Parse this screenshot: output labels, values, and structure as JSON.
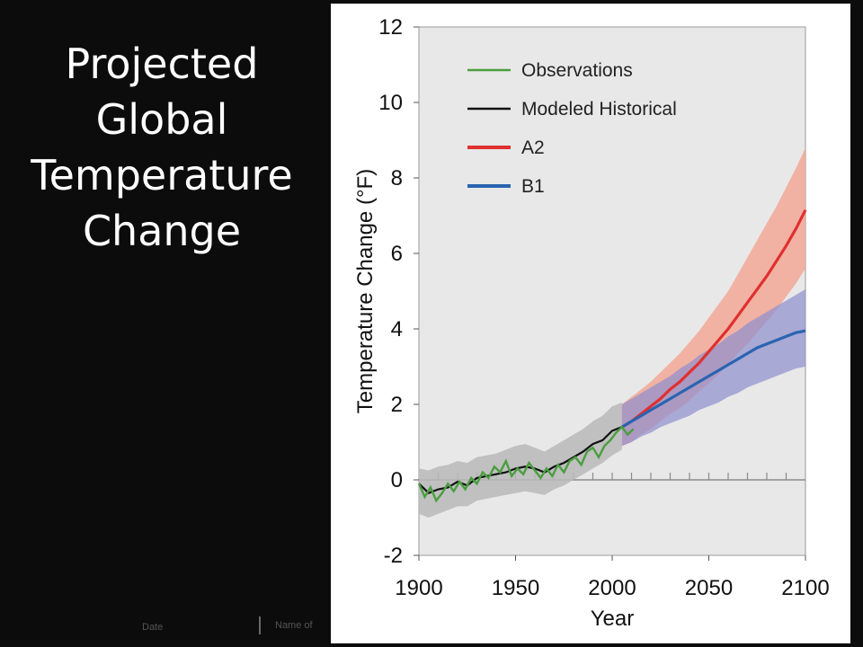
{
  "slide": {
    "title_lines": [
      "Projected",
      "Global",
      "Temperature",
      "Change"
    ],
    "footer_date": "Date",
    "footer_name": "Name of"
  },
  "chart_data": {
    "type": "line",
    "title": "",
    "xlabel": "Year",
    "ylabel": "Temperature Change (°F)",
    "xlim": [
      1900,
      2100
    ],
    "ylim": [
      -2,
      12
    ],
    "xticks": [
      1900,
      1950,
      2000,
      2050,
      2100
    ],
    "yticks": [
      -2,
      0,
      2,
      4,
      6,
      8,
      10,
      12
    ],
    "legend_position": "top-left",
    "grid": false,
    "colors": {
      "plot_background": "#e8e8e8",
      "observations": "#4a9e3f",
      "modeled_historical": "#111111",
      "historical_band": "#b9b9b9",
      "a2": "#e03030",
      "a2_band": "#f4a08c",
      "b1": "#2a64b0",
      "b1_band": "#8f8fce"
    },
    "series": [
      {
        "name": "Observations",
        "x": [
          1900,
          1903,
          1906,
          1909,
          1912,
          1915,
          1918,
          1921,
          1924,
          1927,
          1930,
          1933,
          1936,
          1939,
          1942,
          1945,
          1948,
          1951,
          1954,
          1957,
          1960,
          1963,
          1966,
          1969,
          1972,
          1975,
          1978,
          1981,
          1984,
          1987,
          1990,
          1993,
          1996,
          1999,
          2002,
          2005,
          2008,
          2011
        ],
        "values": [
          -0.1,
          -0.45,
          -0.2,
          -0.55,
          -0.35,
          -0.1,
          -0.3,
          -0.05,
          -0.25,
          0.05,
          -0.1,
          0.2,
          0.05,
          0.35,
          0.2,
          0.5,
          0.1,
          0.3,
          0.15,
          0.45,
          0.25,
          0.05,
          0.3,
          0.1,
          0.4,
          0.2,
          0.5,
          0.6,
          0.4,
          0.75,
          0.85,
          0.6,
          0.9,
          1.05,
          1.25,
          1.4,
          1.2,
          1.35
        ]
      },
      {
        "name": "Modeled Historical",
        "x": [
          1900,
          1905,
          1910,
          1915,
          1920,
          1925,
          1930,
          1935,
          1940,
          1945,
          1950,
          1955,
          1960,
          1965,
          1970,
          1975,
          1980,
          1985,
          1990,
          1995,
          2000,
          2005
        ],
        "values": [
          -0.1,
          -0.35,
          -0.25,
          -0.2,
          -0.05,
          -0.15,
          0.05,
          0.1,
          0.15,
          0.2,
          0.3,
          0.35,
          0.3,
          0.2,
          0.35,
          0.45,
          0.6,
          0.75,
          0.95,
          1.05,
          1.3,
          1.4
        ],
        "band_lower": [
          -0.9,
          -1.0,
          -0.9,
          -0.8,
          -0.7,
          -0.7,
          -0.55,
          -0.5,
          -0.45,
          -0.4,
          -0.35,
          -0.3,
          -0.35,
          -0.4,
          -0.25,
          -0.15,
          0.0,
          0.15,
          0.3,
          0.45,
          0.65,
          0.8
        ],
        "band_upper": [
          0.3,
          0.25,
          0.35,
          0.4,
          0.5,
          0.45,
          0.6,
          0.65,
          0.7,
          0.8,
          0.9,
          0.95,
          0.85,
          0.75,
          0.9,
          1.05,
          1.2,
          1.35,
          1.55,
          1.7,
          1.95,
          2.05
        ]
      },
      {
        "name": "A2",
        "x": [
          2005,
          2010,
          2015,
          2020,
          2025,
          2030,
          2035,
          2040,
          2045,
          2050,
          2055,
          2060,
          2065,
          2070,
          2075,
          2080,
          2085,
          2090,
          2095,
          2100
        ],
        "values": [
          1.4,
          1.55,
          1.75,
          1.95,
          2.15,
          2.4,
          2.6,
          2.85,
          3.1,
          3.4,
          3.7,
          4.0,
          4.35,
          4.7,
          5.05,
          5.4,
          5.8,
          6.2,
          6.65,
          7.15
        ],
        "band_lower": [
          0.9,
          1.0,
          1.2,
          1.35,
          1.55,
          1.75,
          1.9,
          2.1,
          2.35,
          2.55,
          2.8,
          3.05,
          3.35,
          3.6,
          3.9,
          4.2,
          4.5,
          4.85,
          5.2,
          5.6
        ],
        "band_upper": [
          2.0,
          2.2,
          2.4,
          2.6,
          2.85,
          3.1,
          3.35,
          3.65,
          3.95,
          4.3,
          4.65,
          5.0,
          5.45,
          5.9,
          6.35,
          6.8,
          7.25,
          7.75,
          8.25,
          8.8
        ]
      },
      {
        "name": "B1",
        "x": [
          2005,
          2010,
          2015,
          2020,
          2025,
          2030,
          2035,
          2040,
          2045,
          2050,
          2055,
          2060,
          2065,
          2070,
          2075,
          2080,
          2085,
          2090,
          2095,
          2100
        ],
        "values": [
          1.4,
          1.55,
          1.7,
          1.85,
          2.0,
          2.15,
          2.3,
          2.45,
          2.6,
          2.75,
          2.9,
          3.05,
          3.2,
          3.35,
          3.5,
          3.6,
          3.7,
          3.8,
          3.9,
          3.95
        ],
        "band_lower": [
          0.9,
          1.0,
          1.15,
          1.25,
          1.4,
          1.5,
          1.6,
          1.7,
          1.85,
          1.95,
          2.05,
          2.2,
          2.3,
          2.45,
          2.55,
          2.65,
          2.75,
          2.85,
          2.95,
          3.0
        ],
        "band_upper": [
          2.0,
          2.15,
          2.3,
          2.45,
          2.6,
          2.75,
          2.95,
          3.1,
          3.3,
          3.45,
          3.6,
          3.8,
          3.95,
          4.15,
          4.3,
          4.45,
          4.6,
          4.75,
          4.9,
          5.05
        ]
      }
    ]
  }
}
